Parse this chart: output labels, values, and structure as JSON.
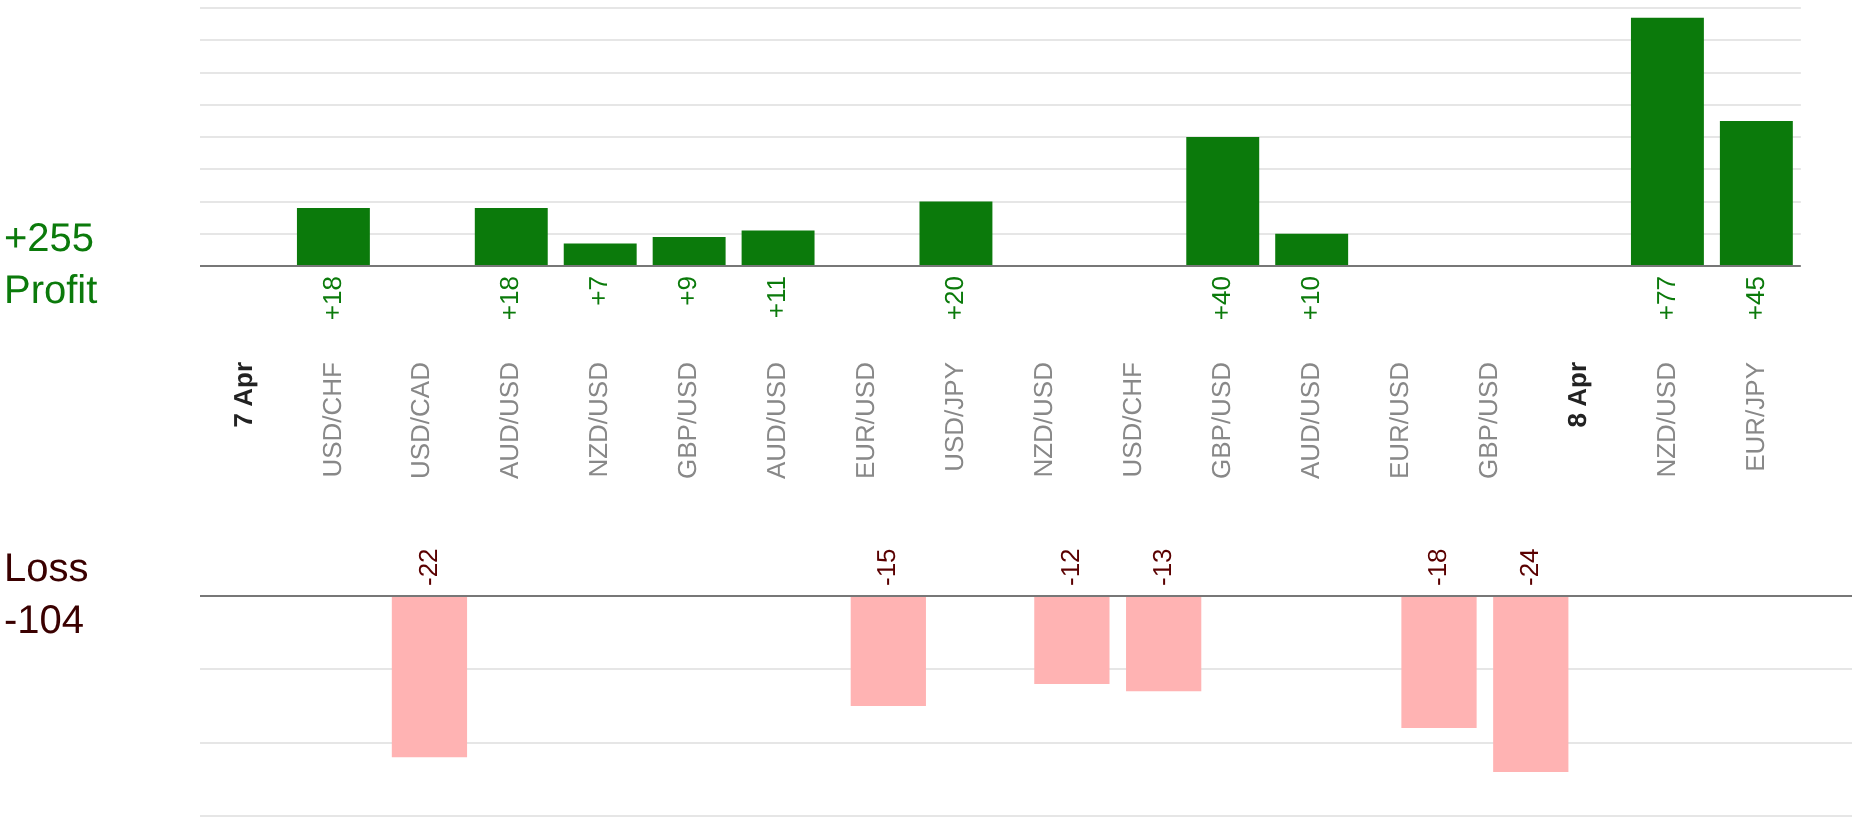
{
  "chart_data": [
    {
      "type": "bar",
      "categories": [
        "7 Apr",
        "USD/CHF",
        "USD/CAD",
        "AUD/USD",
        "NZD/USD",
        "GBP/USD",
        "AUD/USD",
        "EUR/USD",
        "USD/JPY",
        "NZD/USD",
        "USD/CHF",
        "GBP/USD",
        "AUD/USD",
        "EUR/USD",
        "GBP/USD",
        "8 Apr",
        "NZD/USD",
        "EUR/JPY"
      ],
      "values": [
        null,
        18,
        null,
        18,
        7,
        9,
        11,
        null,
        20,
        null,
        null,
        40,
        10,
        null,
        null,
        null,
        77,
        45
      ],
      "value_labels": [
        null,
        "+18",
        null,
        "+18",
        "+7",
        "+9",
        "+11",
        null,
        "+20",
        null,
        null,
        "+40",
        "+10",
        null,
        null,
        null,
        "+77",
        "+45"
      ],
      "color": "#0b7a0b",
      "ylim": [
        0,
        80
      ],
      "yticks": [
        {
          "value": 0,
          "label": null
        },
        {
          "value": 10,
          "label": null
        },
        {
          "value": 20,
          "label": null
        },
        {
          "value": 30,
          "label": null
        },
        {
          "value": 40,
          "label": null
        },
        {
          "value": 50,
          "label": null
        },
        {
          "value": 60,
          "label": null
        },
        {
          "value": 70,
          "label": null
        },
        {
          "value": 80,
          "label": null
        }
      ],
      "grid": "y",
      "tick_labels": "x",
      "annotations": [
        "+255",
        "Profit"
      ]
    },
    {
      "type": "bar",
      "categories": [
        "7 Apr",
        "USD/CHF",
        "USD/CAD",
        "AUD/USD",
        "NZD/USD",
        "GBP/USD",
        "AUD/USD",
        "EUR/USD",
        "USD/JPY",
        "NZD/USD",
        "USD/CHF",
        "GBP/USD",
        "AUD/USD",
        "EUR/USD",
        "GBP/USD",
        "8 Apr",
        "NZD/USD",
        "EUR/JPY"
      ],
      "values": [
        null,
        null,
        -22,
        null,
        null,
        null,
        null,
        -15,
        null,
        -12,
        -13,
        null,
        null,
        -18,
        -24,
        null,
        null,
        null
      ],
      "data_labels": true,
      "color": "#ffb3b3",
      "ylim": [
        -30,
        0
      ],
      "yticks": [
        {
          "value": -30,
          "label": null
        },
        {
          "value": -20,
          "label": null
        },
        {
          "value": -10,
          "label": null
        },
        {
          "value": 0,
          "label": null
        }
      ],
      "grid": "y",
      "tick_labels": false,
      "annotations": [
        "Loss",
        "-104"
      ]
    }
  ]
}
